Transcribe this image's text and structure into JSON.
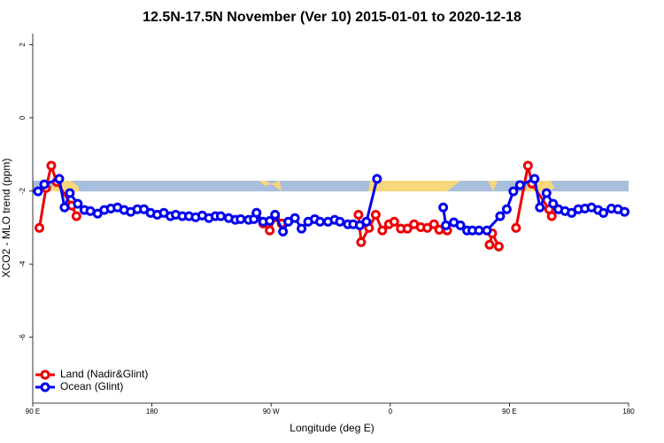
{
  "chart_data": {
    "type": "line",
    "title": "12.5N-17.5N November (Ver 10)   2015-01-01 to 2020-12-18",
    "x_label": "Longitude (deg E)",
    "y_label": "XCO2 - MLO trend (ppm)",
    "xlim": [
      90,
      540
    ],
    "xticks": [
      {
        "value": 90,
        "label": "90 E"
      },
      180,
      {
        "value": 270,
        "label": "90 W"
      },
      {
        "value": 360,
        "label": "0"
      },
      {
        "value": 450,
        "label": "90 E"
      },
      {
        "value": 540,
        "label": "180"
      }
    ],
    "ylim": [
      -7.8,
      2.3
    ],
    "yticks": [
      -6,
      -4,
      -2,
      0,
      2
    ],
    "legend": "bottom-left",
    "series": [
      {
        "name": "Land (Nadir&Glint)",
        "color": "#ee0000",
        "x": [
          95,
          100,
          104,
          108,
          119.5,
          123,
          null,
          259,
          264,
          269,
          273,
          278,
          null,
          336,
          338,
          344,
          349,
          354,
          359,
          363,
          368,
          373,
          378,
          383,
          388,
          393,
          397,
          403,
          null,
          435,
          437,
          442,
          null,
          455,
          464,
          467,
          480,
          482
        ],
        "values": [
          -3.01,
          -1.92,
          -1.31,
          -1.75,
          -2.4,
          -2.69,
          null,
          -2.6,
          -2.89,
          -3.08,
          -2.72,
          -2.89,
          null,
          -2.65,
          -3.4,
          -3.01,
          -2.65,
          -3.08,
          -2.91,
          -2.84,
          -3.03,
          -3.03,
          -2.91,
          -2.99,
          -3.01,
          -2.91,
          -3.06,
          -3.08,
          null,
          -3.47,
          -3.16,
          -3.52,
          null,
          -3.01,
          -1.31,
          -1.8,
          -2.5,
          -2.69
        ]
      },
      {
        "name": "Ocean (Glint)",
        "color": "#0000ee",
        "x": [
          94,
          98.7,
          110,
          114,
          118,
          124,
          129,
          133.5,
          139,
          144,
          149,
          154,
          159,
          164,
          169,
          174,
          179,
          184,
          189,
          194,
          198,
          203,
          208,
          213,
          218,
          223,
          228,
          232,
          238,
          243,
          247,
          253,
          257,
          259,
          264,
          269,
          273,
          279,
          283,
          288,
          293,
          298,
          303,
          307,
          313,
          318,
          322,
          328,
          332,
          337,
          342,
          350,
          null,
          400,
          402,
          408,
          413,
          418,
          422,
          427,
          433,
          443,
          448,
          453,
          458,
          469,
          473,
          478,
          483,
          487,
          492,
          497,
          502,
          507,
          512,
          517,
          521,
          527,
          532,
          537
        ],
        "values": [
          -2.01,
          -1.82,
          -1.67,
          -2.45,
          -2.06,
          -2.35,
          -2.52,
          -2.55,
          -2.62,
          -2.52,
          -2.48,
          -2.45,
          -2.52,
          -2.57,
          -2.5,
          -2.5,
          -2.6,
          -2.65,
          -2.6,
          -2.69,
          -2.65,
          -2.69,
          -2.69,
          -2.72,
          -2.67,
          -2.74,
          -2.69,
          -2.69,
          -2.74,
          -2.79,
          -2.77,
          -2.79,
          -2.77,
          -2.6,
          -2.84,
          -2.82,
          -2.65,
          -3.11,
          -2.84,
          -2.74,
          -3.03,
          -2.84,
          -2.77,
          -2.84,
          -2.84,
          -2.79,
          -2.84,
          -2.91,
          -2.91,
          -2.94,
          -2.84,
          -1.67,
          null,
          -2.45,
          -2.94,
          -2.86,
          -2.94,
          -3.08,
          -3.08,
          -3.08,
          -3.08,
          -2.69,
          -2.5,
          -2.01,
          -1.84,
          -1.67,
          -2.45,
          -2.06,
          -2.35,
          -2.5,
          -2.55,
          -2.6,
          -2.5,
          -2.48,
          -2.45,
          -2.52,
          -2.6,
          -2.48,
          -2.5,
          -2.57
        ]
      }
    ]
  }
}
